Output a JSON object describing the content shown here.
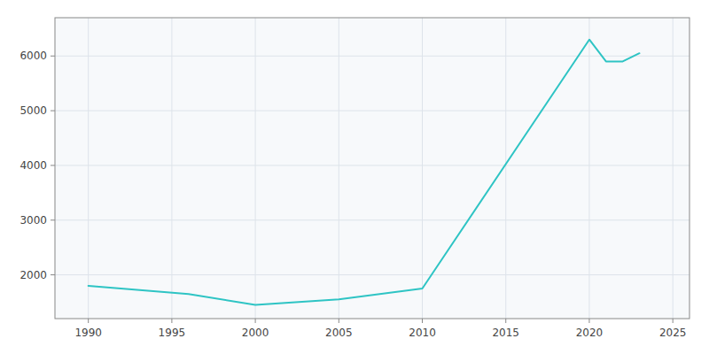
{
  "chart_data": {
    "type": "line",
    "x": [
      1990,
      1996,
      2000,
      2005,
      2010,
      2020,
      2021,
      2022,
      2023
    ],
    "values": [
      1800,
      1650,
      1450,
      1550,
      1750,
      6300,
      5900,
      5900,
      6050
    ],
    "color": "#2EC4C4",
    "xlim": [
      1988,
      2026
    ],
    "ylim": [
      1200,
      6700
    ],
    "xticks": [
      1990,
      1995,
      2000,
      2005,
      2010,
      2015,
      2020,
      2025
    ],
    "yticks": [
      2000,
      3000,
      4000,
      5000,
      6000
    ],
    "grid": true
  }
}
